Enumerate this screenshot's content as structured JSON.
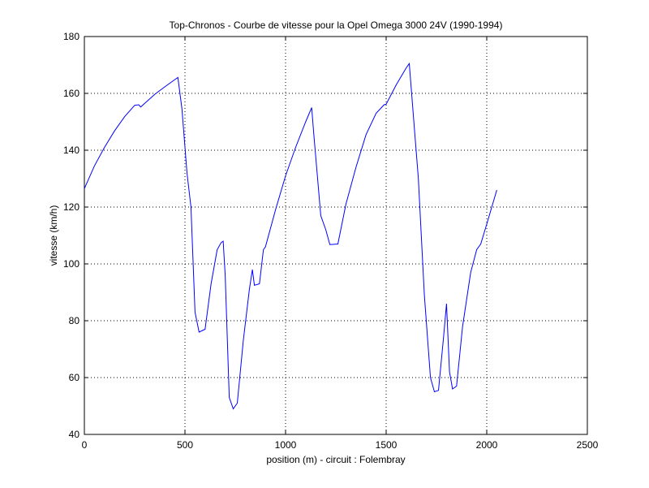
{
  "chart_data": {
    "type": "line",
    "title": "Top-Chronos - Courbe de vitesse pour la Opel Omega 3000 24V (1990-1994)",
    "xlabel": "position (m) - circuit : Folembray",
    "ylabel": "vitesse (km/h)",
    "xlim": [
      0,
      2500
    ],
    "ylim": [
      40,
      180
    ],
    "xticks": [
      0,
      500,
      1000,
      1500,
      2000,
      2500
    ],
    "yticks": [
      40,
      60,
      80,
      100,
      120,
      140,
      160,
      180
    ],
    "grid": true,
    "line_color": "#0000ff",
    "series": [
      {
        "x": [
          0,
          50,
          100,
          150,
          200,
          250,
          270,
          280,
          350,
          400,
          465,
          485,
          510,
          530,
          550,
          570,
          600,
          630,
          660,
          680,
          690,
          700,
          720,
          740,
          760,
          790,
          820,
          835,
          845,
          870,
          890,
          900,
          950,
          1000,
          1050,
          1100,
          1130,
          1140,
          1175,
          1200,
          1220,
          1260,
          1300,
          1350,
          1400,
          1450,
          1490,
          1500,
          1550,
          1600,
          1615,
          1640,
          1660,
          1690,
          1720,
          1740,
          1760,
          1785,
          1800,
          1815,
          1830,
          1850,
          1880,
          1920,
          1950,
          1970,
          2000,
          2050
        ],
        "y": [
          126.5,
          134.5,
          141,
          146.8,
          151.8,
          155.8,
          156,
          155.2,
          159.7,
          162.3,
          165.6,
          154.5,
          132,
          120,
          83,
          76,
          77,
          93,
          105,
          107.5,
          108,
          96,
          53,
          49,
          51,
          73,
          91,
          98,
          92.5,
          93,
          105,
          106,
          119,
          131,
          141,
          150,
          155,
          146,
          117,
          112,
          106.8,
          107,
          121,
          134,
          145.5,
          153,
          156,
          156.2,
          163,
          169,
          170.5,
          148,
          130,
          89,
          60,
          55,
          55.5,
          74,
          86,
          62,
          56,
          57,
          78,
          97,
          105,
          107,
          114,
          126
        ]
      }
    ]
  }
}
